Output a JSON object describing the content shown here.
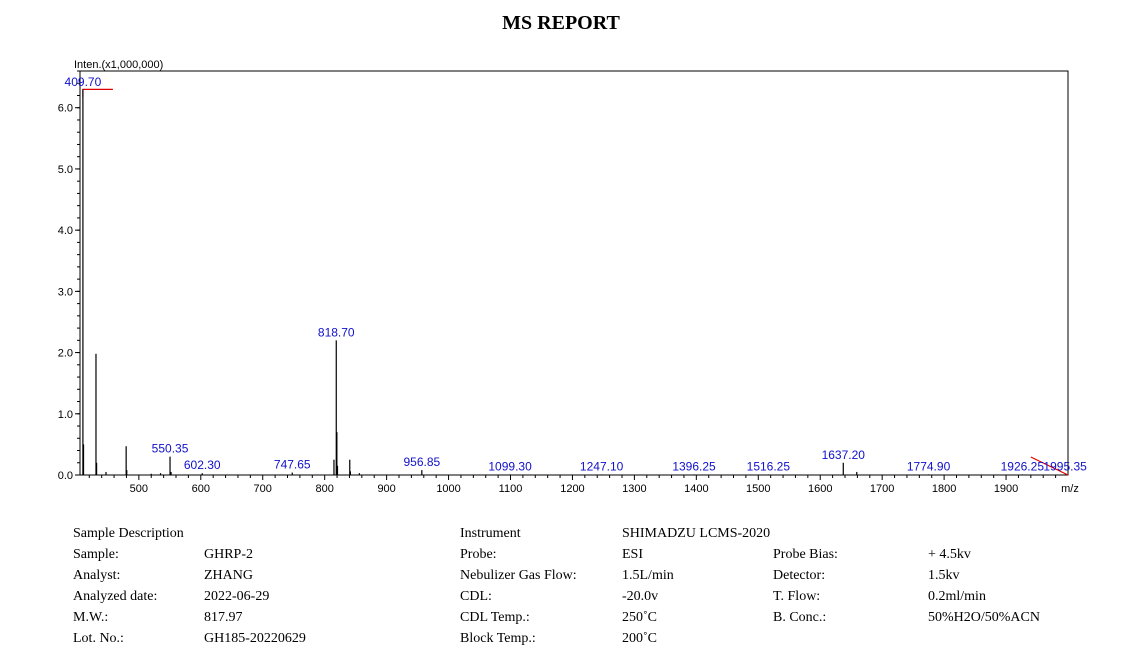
{
  "report_title": "MS REPORT",
  "chart_data": {
    "type": "bar",
    "title": "",
    "ylabel": "Inten.(x1,000,000)",
    "xlabel": "m/z",
    "xlim": [
      405,
      2000
    ],
    "ylim": [
      0,
      6.6
    ],
    "x_ticks": [
      500,
      600,
      700,
      800,
      900,
      1000,
      1100,
      1200,
      1300,
      1400,
      1500,
      1600,
      1700,
      1800,
      1900
    ],
    "y_ticks": [
      "0.0",
      "1.0",
      "2.0",
      "3.0",
      "4.0",
      "5.0",
      "6.0"
    ],
    "grid": false,
    "peaks": [
      {
        "mz": 409.7,
        "intensity": 6.3,
        "label": "409.70"
      },
      {
        "mz": 410.7,
        "intensity": 0.5
      },
      {
        "mz": 430.8,
        "intensity": 1.98
      },
      {
        "mz": 431.8,
        "intensity": 0.2
      },
      {
        "mz": 447.0,
        "intensity": 0.05
      },
      {
        "mz": 479.5,
        "intensity": 0.47
      },
      {
        "mz": 480.5,
        "intensity": 0.08
      },
      {
        "mz": 520.0,
        "intensity": 0.02
      },
      {
        "mz": 535.0,
        "intensity": 0.03
      },
      {
        "mz": 550.35,
        "intensity": 0.3,
        "label": "550.35"
      },
      {
        "mz": 552.0,
        "intensity": 0.05
      },
      {
        "mz": 602.3,
        "intensity": 0.03,
        "label": "602.30"
      },
      {
        "mz": 747.65,
        "intensity": 0.04,
        "label": "747.65"
      },
      {
        "mz": 815.0,
        "intensity": 0.25
      },
      {
        "mz": 818.7,
        "intensity": 2.2,
        "label": "818.70"
      },
      {
        "mz": 819.7,
        "intensity": 0.7
      },
      {
        "mz": 820.7,
        "intensity": 0.15
      },
      {
        "mz": 840.5,
        "intensity": 0.25
      },
      {
        "mz": 841.5,
        "intensity": 0.06
      },
      {
        "mz": 856.0,
        "intensity": 0.03
      },
      {
        "mz": 956.85,
        "intensity": 0.08,
        "label": "956.85"
      },
      {
        "mz": 1099.3,
        "intensity": 0.01,
        "label": "1099.30"
      },
      {
        "mz": 1247.1,
        "intensity": 0.01,
        "label": "1247.10"
      },
      {
        "mz": 1396.25,
        "intensity": 0.01,
        "label": "1396.25"
      },
      {
        "mz": 1516.25,
        "intensity": 0.01,
        "label": "1516.25"
      },
      {
        "mz": 1637.2,
        "intensity": 0.2,
        "label": "1637.20"
      },
      {
        "mz": 1659.0,
        "intensity": 0.05
      },
      {
        "mz": 1774.9,
        "intensity": 0.01,
        "label": "1774.90"
      },
      {
        "mz": 1926.25,
        "intensity": 0.01,
        "label": "1926.25"
      },
      {
        "mz": 1995.35,
        "intensity": 0.01,
        "label": "1995.35"
      }
    ]
  },
  "sample_info": {
    "header": "Sample Description",
    "rows": [
      {
        "label": "Sample:",
        "value": "GHRP-2"
      },
      {
        "label": "Analyst:",
        "value": "ZHANG"
      },
      {
        "label": "Analyzed date:",
        "value": "2022-06-29"
      },
      {
        "label": "M.W.:",
        "value": "817.97"
      },
      {
        "label": "Lot. No.:",
        "value": "GH185-20220629"
      }
    ]
  },
  "instrument_info": {
    "label": "Instrument",
    "value": "SHIMADZU LCMS-2020",
    "rows": [
      {
        "label": "Probe:",
        "value": "ESI"
      },
      {
        "label": "Nebulizer Gas Flow:",
        "value": "1.5L/min"
      },
      {
        "label": "CDL:",
        "value": "-20.0v"
      },
      {
        "label": "CDL Temp.:",
        "value": "250˚C"
      },
      {
        "label": "Block Temp.:",
        "value": "200˚C"
      }
    ],
    "right_rows": [
      {
        "label": "Probe Bias:",
        "value": "+ 4.5kv"
      },
      {
        "label": "Detector:",
        "value": "1.5kv"
      },
      {
        "label": "T. Flow:",
        "value": "0.2ml/min"
      },
      {
        "label": "B. Conc.:",
        "value": "50%H2O/50%ACN"
      }
    ]
  }
}
